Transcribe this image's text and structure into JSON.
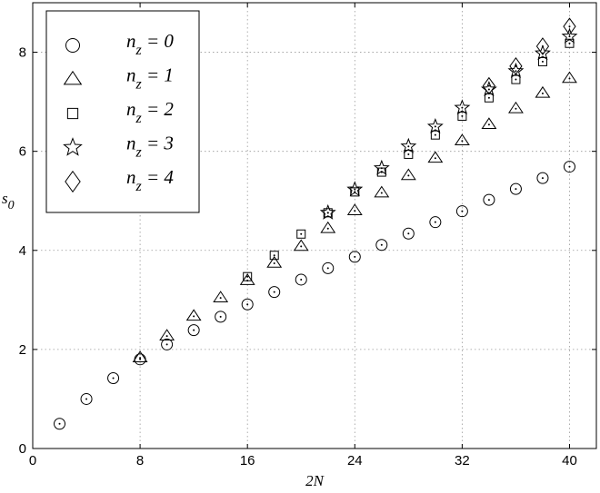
{
  "chart_data": {
    "type": "scatter",
    "title": "",
    "xlabel": "2N",
    "ylabel": "s",
    "ylabel_sub": "0",
    "xlim": [
      0,
      42
    ],
    "ylim": [
      0,
      9
    ],
    "xticks": [
      "0",
      "8",
      "16",
      "24",
      "32",
      "40"
    ],
    "yticks": [
      "0",
      "2",
      "4",
      "6",
      "8"
    ],
    "grid": true,
    "legend_position": "top-left",
    "series": [
      {
        "name": "n_z = 0",
        "label_main": "n",
        "label_sub": "z",
        "label_rest": " = 0",
        "marker": "circle",
        "x": [
          2,
          4,
          6,
          8,
          10,
          12,
          14,
          16,
          18,
          20,
          22,
          24,
          26,
          28,
          30,
          32,
          34,
          36,
          38,
          40
        ],
        "y": [
          0.5,
          1.0,
          1.42,
          1.8,
          2.1,
          2.39,
          2.66,
          2.91,
          3.16,
          3.41,
          3.64,
          3.87,
          4.11,
          4.34,
          4.57,
          4.79,
          5.02,
          5.24,
          5.46,
          5.69
        ]
      },
      {
        "name": "n_z = 1",
        "label_main": "n",
        "label_sub": "z",
        "label_rest": " = 1",
        "marker": "triangle",
        "x": [
          8,
          10,
          12,
          14,
          16,
          18,
          20,
          22,
          24,
          26,
          28,
          30,
          32,
          34,
          36,
          38,
          40
        ],
        "y": [
          1.83,
          2.27,
          2.67,
          3.04,
          3.39,
          3.74,
          4.08,
          4.44,
          4.8,
          5.16,
          5.51,
          5.86,
          6.21,
          6.54,
          6.86,
          7.17,
          7.47
        ]
      },
      {
        "name": "n_z = 2",
        "label_main": "n",
        "label_sub": "z",
        "label_rest": " = 2",
        "marker": "square",
        "x": [
          16,
          18,
          20,
          22,
          24,
          26,
          28,
          30,
          32,
          34,
          36,
          38,
          40
        ],
        "y": [
          3.47,
          3.9,
          4.33,
          4.76,
          5.18,
          5.58,
          5.94,
          6.33,
          6.71,
          7.08,
          7.45,
          7.81,
          8.18
        ]
      },
      {
        "name": "n_z = 3",
        "label_main": "n",
        "label_sub": "z",
        "label_rest": " = 3",
        "marker": "star",
        "x": [
          22,
          24,
          26,
          28,
          30,
          32,
          34,
          36,
          38,
          40
        ],
        "y": [
          4.76,
          5.23,
          5.66,
          6.1,
          6.5,
          6.88,
          7.25,
          7.62,
          7.98,
          8.32
        ]
      },
      {
        "name": "n_z = 4",
        "label_main": "n",
        "label_sub": "z",
        "label_rest": " = 4",
        "marker": "diamond",
        "x": [
          34,
          36,
          38,
          40
        ],
        "y": [
          7.32,
          7.72,
          8.12,
          8.52
        ]
      }
    ]
  }
}
